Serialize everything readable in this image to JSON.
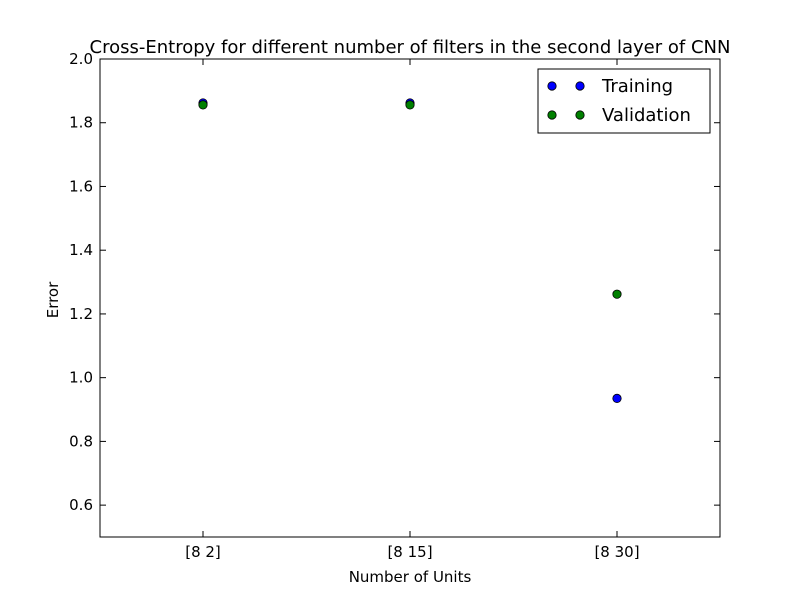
{
  "chart_data": {
    "type": "scatter",
    "title": "Cross-Entropy for different number of filters in the second layer of CNN",
    "xlabel": "Number of Units",
    "ylabel": "Error",
    "categories": [
      "[8 2]",
      "[8 15]",
      "[8 30]"
    ],
    "ylim": [
      0.5,
      2.0
    ],
    "yticks": [
      "0.6",
      "0.8",
      "1.0",
      "1.2",
      "1.4",
      "1.6",
      "1.8",
      "2.0"
    ],
    "grid": false,
    "legend_position": "top-right",
    "series": [
      {
        "name": "Training",
        "color": "#0000ff",
        "values": [
          1.862,
          1.862,
          0.935
        ]
      },
      {
        "name": "Validation",
        "color": "#008000",
        "values": [
          1.856,
          1.856,
          1.262
        ]
      }
    ]
  }
}
